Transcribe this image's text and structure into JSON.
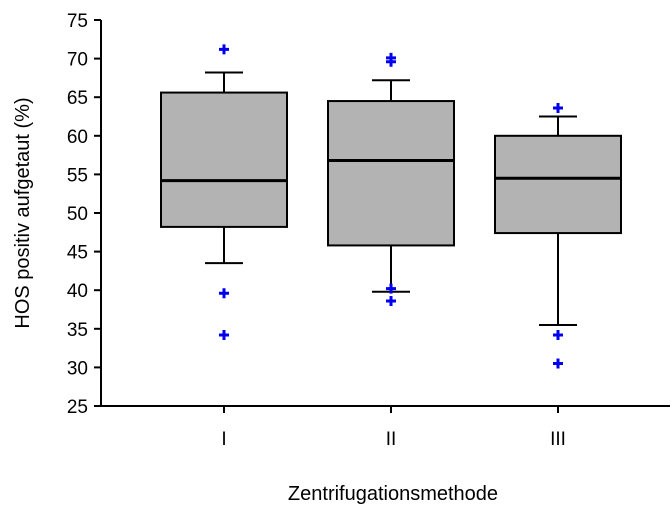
{
  "chart_data": {
    "type": "box",
    "title": "",
    "xlabel": "Zentrifugationsmethode",
    "ylabel": "HOS positiv aufgetaut (%)",
    "ylim": [
      25,
      75
    ],
    "yticks": [
      25,
      30,
      35,
      40,
      45,
      50,
      55,
      60,
      65,
      70,
      75
    ],
    "grid": false,
    "categories": [
      "I",
      "II",
      "III"
    ],
    "boxes": [
      {
        "category": "I",
        "whisker_low": 43.5,
        "q1": 48.2,
        "median": 54.2,
        "q3": 65.6,
        "whisker_high": 68.2,
        "outliers": [
          71.2,
          39.6,
          34.2
        ]
      },
      {
        "category": "II",
        "whisker_low": 39.8,
        "q1": 45.8,
        "median": 56.8,
        "q3": 64.5,
        "whisker_high": 67.2,
        "outliers": [
          70.1,
          69.6,
          40.2,
          38.6
        ]
      },
      {
        "category": "III",
        "whisker_low": 35.5,
        "q1": 47.4,
        "median": 54.5,
        "q3": 60.0,
        "whisker_high": 62.5,
        "outliers": [
          63.6,
          34.2,
          30.5
        ]
      }
    ],
    "colors": {
      "box_fill": "#b3b3b3",
      "outlier": "#0000ee",
      "line": "#000000"
    }
  }
}
